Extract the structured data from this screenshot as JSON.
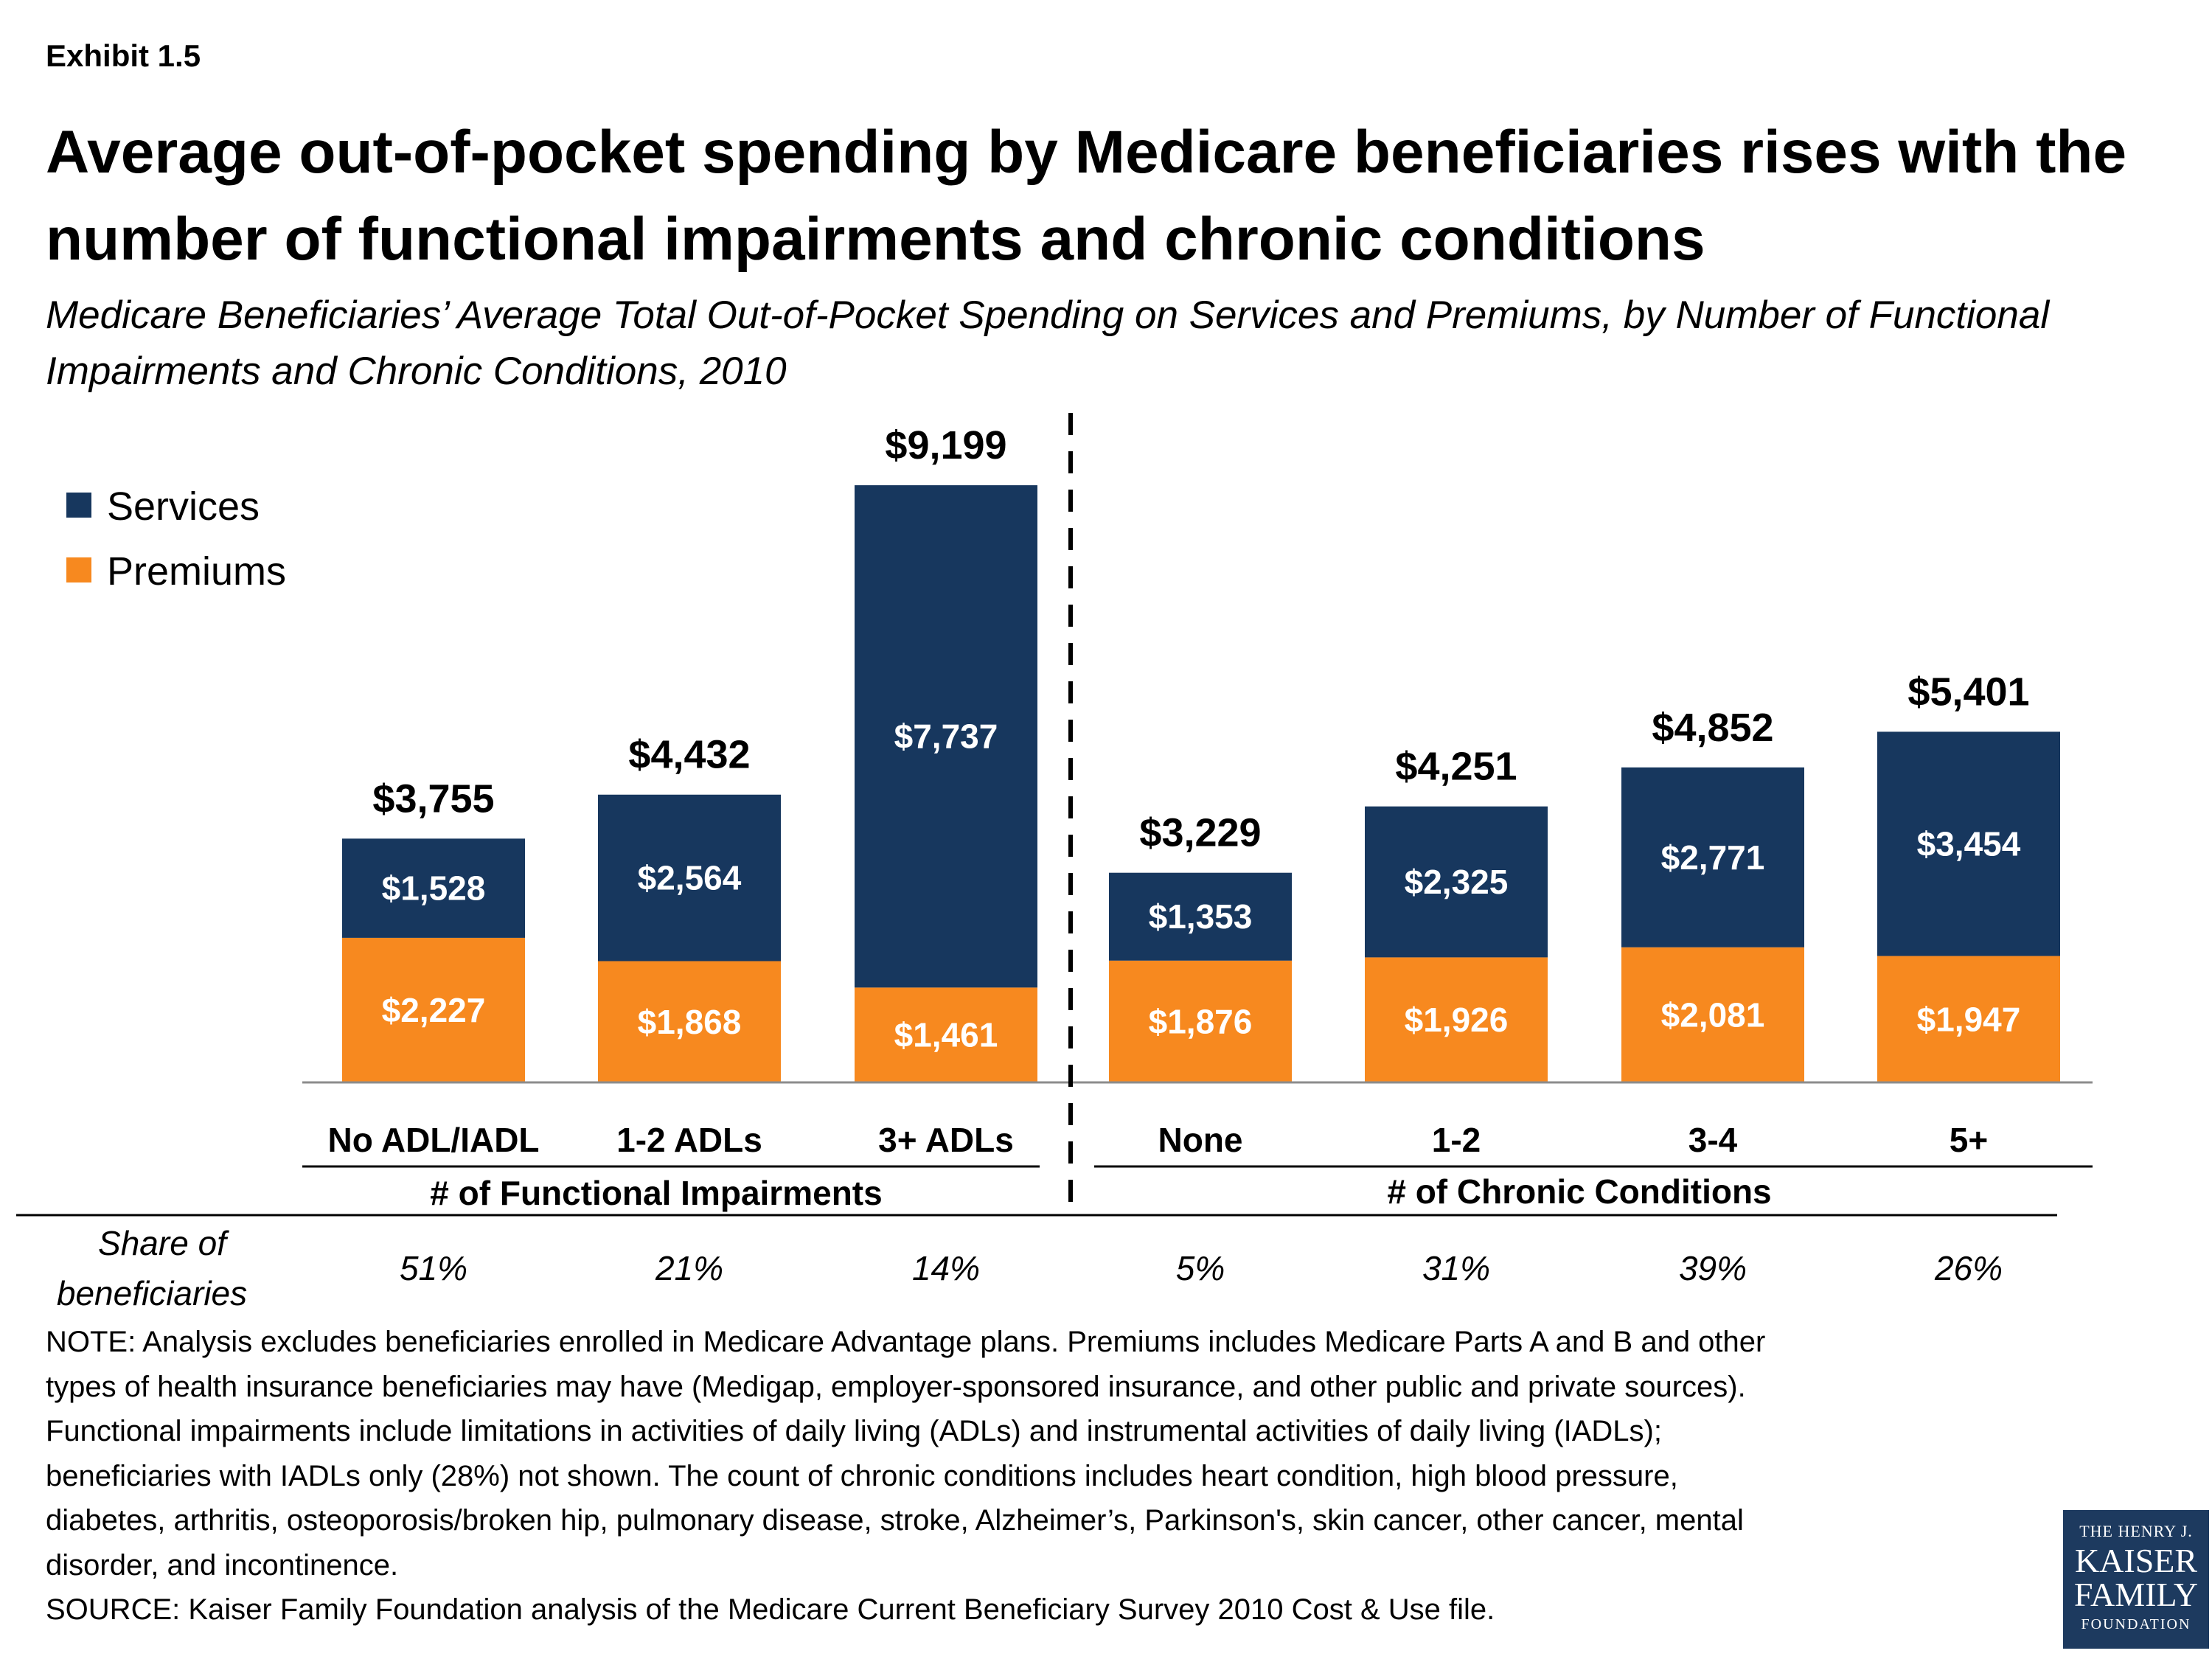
{
  "header": {
    "exhibit": "Exhibit 1.5",
    "title": "Average out-of-pocket spending by Medicare beneficiaries rises with the number of functional impairments and chronic conditions",
    "subtitle": "Medicare Beneficiaries’ Average Total Out-of-Pocket Spending on Services and Premiums, by Number of Functional Impairments and Chronic Conditions, 2010"
  },
  "chart_data": {
    "type": "bar",
    "stacked": true,
    "categories": [
      "No ADL/IADL",
      "1-2 ADLs",
      "3+ ADLs",
      "None",
      "1-2",
      "3-4",
      "5+"
    ],
    "groups": [
      {
        "label": "# of Functional Impairments",
        "categories": [
          "No ADL/IADL",
          "1-2 ADLs",
          "3+ ADLs"
        ]
      },
      {
        "label": "# of Chronic Conditions",
        "categories": [
          "None",
          "1-2",
          "3-4",
          "5+"
        ]
      }
    ],
    "series": [
      {
        "name": "Premiums",
        "color": "#f7891f",
        "values": [
          2227,
          1868,
          1461,
          1876,
          1926,
          2081,
          1947
        ],
        "labels": [
          "$2,227",
          "$1,868",
          "$1,461",
          "$1,876",
          "$1,926",
          "$2,081",
          "$1,947"
        ]
      },
      {
        "name": "Services",
        "color": "#17375e",
        "values": [
          1528,
          2564,
          7737,
          1353,
          2325,
          2771,
          3454
        ],
        "labels": [
          "$1,528",
          "$2,564",
          "$7,737",
          "$1,353",
          "$2,325",
          "$2,771",
          "$3,454"
        ]
      }
    ],
    "totals": [
      3755,
      4432,
      9199,
      3229,
      4251,
      4852,
      5401
    ],
    "total_labels": [
      "$3,755",
      "$4,432",
      "$9,199",
      "$3,229",
      "$4,251",
      "$4,852",
      "$5,401"
    ],
    "legend": {
      "placement": "top-left",
      "order": [
        "Services",
        "Premiums"
      ]
    },
    "ylim": [
      0,
      9200
    ],
    "grid": false,
    "xlabel": "",
    "ylabel": "",
    "title": "",
    "share": {
      "label_line1": "Share of",
      "label_line2": "beneficiaries",
      "values": [
        "51%",
        "21%",
        "14%",
        "5%",
        "31%",
        "39%",
        "26%"
      ]
    }
  },
  "footer": {
    "note_lines": [
      "NOTE: Analysis excludes beneficiaries enrolled in Medicare Advantage plans. Premiums includes Medicare Parts A and B and other",
      "types of health insurance beneficiaries may have (Medigap, employer-sponsored insurance, and other public and private sources).",
      "Functional impairments include limitations in activities of daily living (ADLs) and instrumental activities of daily living (IADLs);",
      "beneficiaries with IADLs only (28%) not shown.  The count of chronic conditions includes heart condition, high blood pressure,",
      "diabetes, arthritis, osteoporosis/broken hip, pulmonary disease, stroke, Alzheimer’s, Parkinson's, skin cancer, other cancer, mental",
      "disorder, and incontinence."
    ],
    "source": "SOURCE: Kaiser Family Foundation analysis of the Medicare Current Beneficiary Survey 2010 Cost & Use file.",
    "logo": {
      "line1": "THE HENRY J.",
      "line2": "KAISER",
      "line3": "FAMILY",
      "line4": "FOUNDATION"
    }
  }
}
